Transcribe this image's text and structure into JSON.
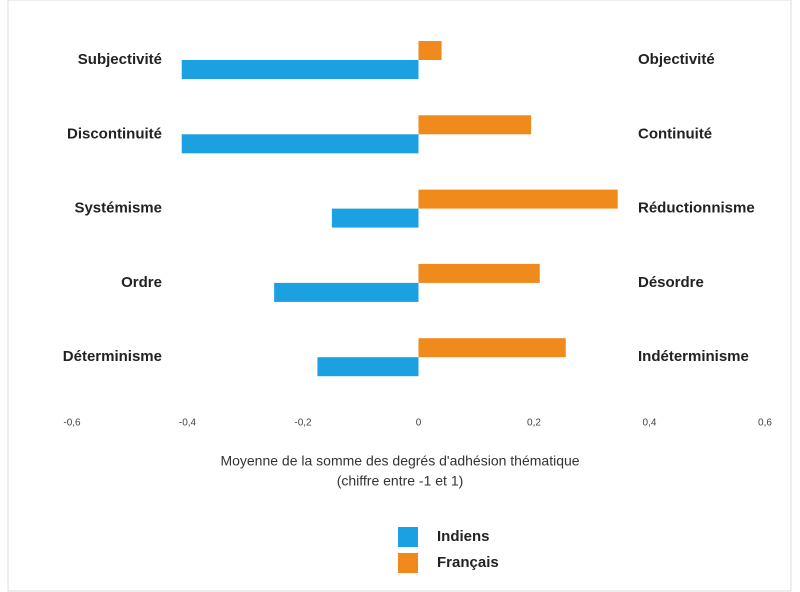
{
  "chart_data": {
    "type": "bar",
    "orientation": "horizontal",
    "categories": [
      "Subjectivité",
      "Discontinuité",
      "Systémisme",
      "Ordre",
      "Déterminisme"
    ],
    "categories_right": [
      "Objectivité",
      "Continuité",
      "Réductionnisme",
      "Désordre",
      "Indéterminisme"
    ],
    "series": [
      {
        "name": "Indiens",
        "color": "#1ba1e2",
        "values": [
          -0.41,
          -0.41,
          -0.15,
          -0.25,
          -0.175
        ]
      },
      {
        "name": "Français",
        "color": "#f08a1d",
        "values": [
          0.04,
          0.195,
          0.345,
          0.21,
          0.255
        ]
      }
    ],
    "xlim": [
      -0.6,
      0.6
    ],
    "xticks": [
      {
        "value": -0.6,
        "label": "-0,6"
      },
      {
        "value": -0.4,
        "label": "-0,4"
      },
      {
        "value": -0.2,
        "label": "-0,2"
      },
      0,
      {
        "value": 0.2,
        "label": "0,2"
      },
      {
        "value": 0.4,
        "label": "0,4"
      },
      {
        "value": 0.6,
        "label": "0,6"
      }
    ],
    "xlabel": [
      "Moyenne de la somme des degrés d'adhésion thématique",
      "(chiffre entre -1 et 1)"
    ],
    "grid": false,
    "legend": "bottom"
  }
}
